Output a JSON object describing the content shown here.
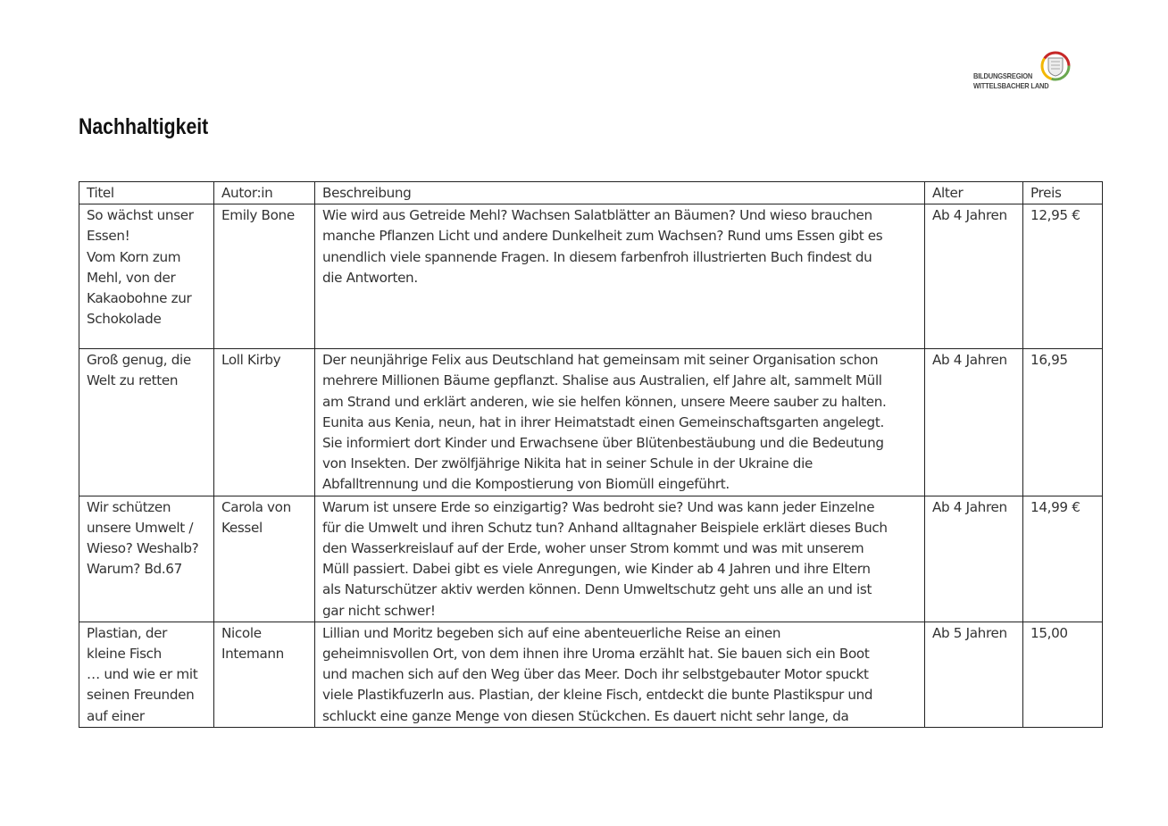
{
  "logo": {
    "line1": "BILDUNGSREGION",
    "line2": "WITTELSBACHER LAND",
    "colors": [
      "#c62828",
      "#f2b705",
      "#6aa84f"
    ]
  },
  "title": "Nachhaltigkeit",
  "table": {
    "headers": [
      "Titel",
      "Autor:in",
      "Beschreibung",
      "Alter",
      "Preis"
    ],
    "rows": [
      {
        "titel": [
          "So wächst unser",
          "Essen!",
          "Vom Korn zum",
          "Mehl, von der",
          "Kakaobohne zur",
          "Schokolade"
        ],
        "autor": [
          "Emily Bone"
        ],
        "beschreibung": [
          "Wie wird aus Getreide Mehl? Wachsen Salatblätter an Bäumen? Und wieso brauchen",
          "manche Pflanzen Licht und andere Dunkelheit zum Wachsen? Rund ums Essen gibt es",
          "unendlich viele spannende Fragen. In diesem farbenfroh illustrierten Buch findest du",
          "die Antworten."
        ],
        "alter": "Ab 4 Jahren",
        "preis": "12,95 €"
      },
      {
        "titel": [
          "Groß genug, die",
          "Welt zu retten"
        ],
        "autor": [
          "Loll Kirby"
        ],
        "beschreibung": [
          "Der neunjährige Felix aus Deutschland hat gemeinsam mit seiner Organisation schon",
          "mehrere Millionen Bäume gepflanzt. Shalise aus Australien, elf Jahre alt, sammelt Müll",
          "am Strand und erklärt anderen, wie sie helfen können, unsere Meere sauber zu halten.",
          "Eunita aus Kenia, neun, hat in ihrer Heimatstadt einen Gemeinschaftsgarten angelegt.",
          "Sie informiert dort Kinder und Erwachsene über Blütenbestäubung und die Bedeutung",
          "von Insekten. Der zwölfjährige Nikita hat in seiner Schule in der Ukraine die",
          "Abfalltrennung und die Kompostierung von Biomüll eingeführt."
        ],
        "alter": "Ab 4 Jahren",
        "preis": "16,95"
      },
      {
        "titel": [
          "Wir schützen",
          "unsere Umwelt /",
          "Wieso? Weshalb?",
          "Warum? Bd.67"
        ],
        "autor": [
          "Carola von",
          "Kessel"
        ],
        "beschreibung": [
          "Warum ist unsere Erde so einzigartig? Was bedroht sie? Und was kann jeder Einzelne",
          "für die Umwelt und ihren Schutz tun? Anhand alltagnaher Beispiele erklärt dieses Buch",
          "den Wasserkreislauf auf der Erde, woher unser Strom kommt und was mit unserem",
          "Müll passiert. Dabei gibt es viele Anregungen, wie Kinder ab 4 Jahren und ihre Eltern",
          "als Naturschützer aktiv werden können. Denn Umweltschutz geht uns alle an und ist",
          "gar nicht schwer!"
        ],
        "alter": "Ab 4 Jahren",
        "preis": "14,99 €"
      },
      {
        "titel": [
          "Plastian, der",
          "kleine Fisch",
          "… und wie er mit",
          "seinen Freunden",
          "auf einer"
        ],
        "autor": [
          "Nicole",
          "Intemann"
        ],
        "beschreibung": [
          "Lillian und Moritz begeben sich auf eine abenteuerliche Reise an einen",
          "geheimnisvollen Ort, von dem ihnen ihre Uroma erzählt hat. Sie bauen sich ein Boot",
          "und machen sich auf den Weg über das Meer. Doch ihr selbstgebauter Motor spuckt",
          "viele Plastikfuzerln aus. Plastian, der kleine Fisch, entdeckt die bunte Plastikspur und",
          "schluckt eine ganze Menge von diesen Stückchen. Es dauert nicht sehr lange, da"
        ],
        "alter": "Ab 5 Jahren",
        "preis": "15,00"
      }
    ]
  }
}
